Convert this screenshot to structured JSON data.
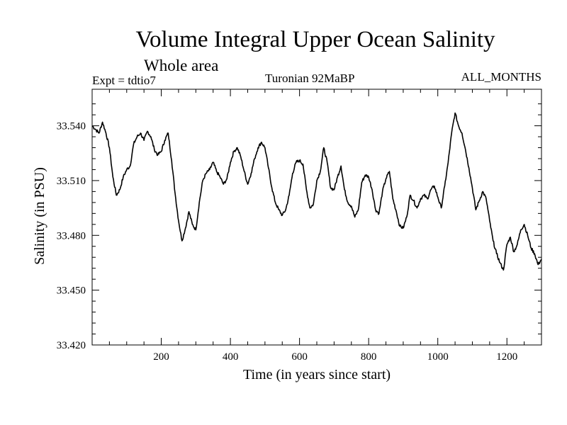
{
  "header": {
    "title": "Volume Integral Upper Ocean Salinity",
    "subtitle": "Whole area",
    "experiment": "Expt = tdtio7",
    "period": "Turonian  92MaBP",
    "months": "ALL_MONTHS"
  },
  "chart_data": {
    "type": "line",
    "title": "Volume Integral Upper Ocean Salinity",
    "subtitle": "Whole area",
    "xlabel": "Time (in years since start)",
    "ylabel": "Salinity (in PSU)",
    "xlim": [
      0,
      1300
    ],
    "ylim": [
      33.42,
      33.56
    ],
    "xticks": [
      200,
      400,
      600,
      800,
      1000,
      1200
    ],
    "yticks": [
      33.42,
      33.45,
      33.48,
      33.51,
      33.54
    ],
    "xtick_labels": [
      "200",
      "400",
      "600",
      "800",
      "1000",
      "1200"
    ],
    "ytick_labels": [
      "33.420",
      "33.450",
      "33.480",
      "33.510",
      "33.540"
    ],
    "grid": false,
    "series": [
      {
        "name": "Salinity",
        "x": [
          0,
          10,
          20,
          30,
          40,
          50,
          60,
          70,
          80,
          90,
          100,
          110,
          120,
          130,
          140,
          150,
          160,
          170,
          180,
          190,
          200,
          210,
          220,
          230,
          240,
          250,
          260,
          270,
          280,
          290,
          300,
          310,
          320,
          330,
          340,
          350,
          360,
          370,
          380,
          390,
          400,
          410,
          420,
          430,
          440,
          450,
          460,
          470,
          480,
          490,
          500,
          510,
          520,
          530,
          540,
          550,
          560,
          570,
          580,
          590,
          600,
          610,
          620,
          630,
          640,
          650,
          660,
          670,
          680,
          690,
          700,
          710,
          720,
          730,
          740,
          750,
          760,
          770,
          780,
          790,
          800,
          810,
          820,
          830,
          840,
          850,
          860,
          870,
          880,
          890,
          900,
          910,
          920,
          930,
          940,
          950,
          960,
          970,
          980,
          990,
          1000,
          1010,
          1020,
          1030,
          1040,
          1050,
          1060,
          1070,
          1080,
          1090,
          1100,
          1110,
          1120,
          1130,
          1140,
          1150,
          1160,
          1170,
          1180,
          1190,
          1200,
          1210,
          1220,
          1230,
          1240,
          1250,
          1260,
          1270,
          1280,
          1290,
          1300
        ],
        "values": [
          33.54,
          33.538,
          33.536,
          33.542,
          33.536,
          33.528,
          33.512,
          33.502,
          33.505,
          33.512,
          33.516,
          33.518,
          33.53,
          33.534,
          33.536,
          33.532,
          33.537,
          33.534,
          33.527,
          33.524,
          33.526,
          33.532,
          33.536,
          33.521,
          33.503,
          33.488,
          33.477,
          33.484,
          33.493,
          33.486,
          33.483,
          33.498,
          33.51,
          33.514,
          33.516,
          33.52,
          33.515,
          33.512,
          33.508,
          33.511,
          33.52,
          33.526,
          33.528,
          33.523,
          33.515,
          33.508,
          33.514,
          33.522,
          33.528,
          33.531,
          33.528,
          33.517,
          33.506,
          33.498,
          33.494,
          33.491,
          33.494,
          33.502,
          33.514,
          33.52,
          33.521,
          33.519,
          33.505,
          33.495,
          33.497,
          33.51,
          33.515,
          33.528,
          33.52,
          33.506,
          33.505,
          33.512,
          33.518,
          33.505,
          33.498,
          33.496,
          33.49,
          33.494,
          33.509,
          33.513,
          33.512,
          33.505,
          33.494,
          33.492,
          33.504,
          33.511,
          33.515,
          33.5,
          33.493,
          33.485,
          33.484,
          33.49,
          33.502,
          33.499,
          33.495,
          33.5,
          33.502,
          33.5,
          33.505,
          33.507,
          33.501,
          33.495,
          33.507,
          33.52,
          33.536,
          33.547,
          33.54,
          33.536,
          33.527,
          33.517,
          33.506,
          33.494,
          33.499,
          33.504,
          33.5,
          33.488,
          33.477,
          33.47,
          33.465,
          33.461,
          33.475,
          33.479,
          33.471,
          33.475,
          33.483,
          33.486,
          33.48,
          33.473,
          33.47,
          33.464,
          33.467
        ]
      }
    ]
  }
}
